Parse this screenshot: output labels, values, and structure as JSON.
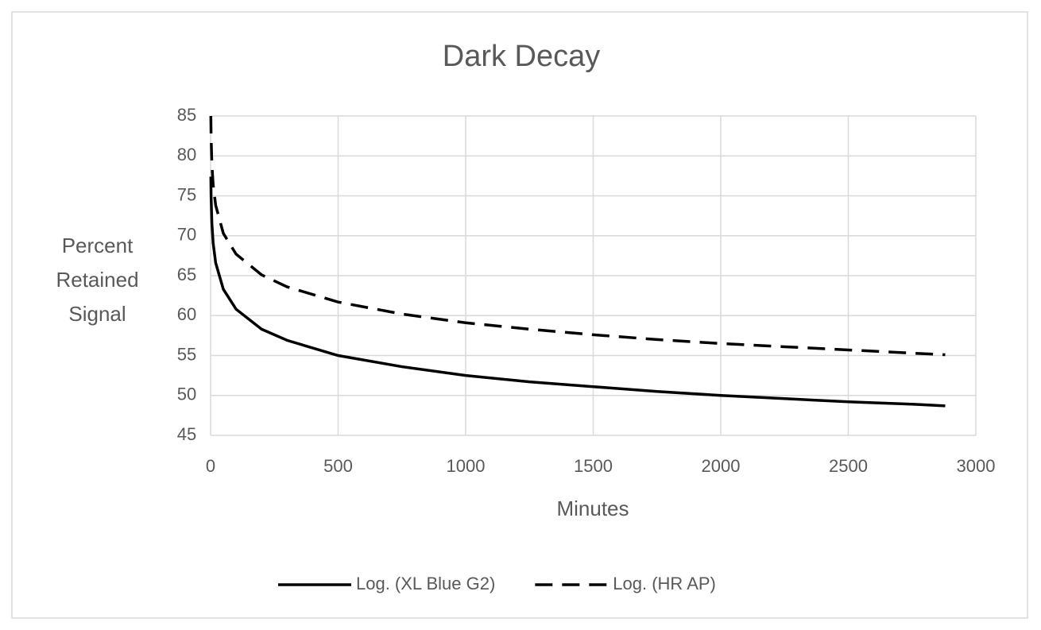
{
  "chart_data": {
    "type": "line",
    "title": "Dark Decay",
    "x_label": "Minutes",
    "y_label": "Percent Retained Signal",
    "x": [
      1,
      2,
      5,
      10,
      20,
      50,
      100,
      200,
      300,
      500,
      750,
      1000,
      1250,
      1500,
      1750,
      2000,
      2250,
      2500,
      2750,
      2880
    ],
    "series": [
      {
        "name": "Log. (XL Blue G2)",
        "color": "#000000",
        "dash": "solid",
        "values": [
          77.4,
          74.9,
          71.6,
          69.1,
          66.6,
          63.3,
          60.8,
          58.3,
          56.9,
          55.0,
          53.6,
          52.5,
          51.7,
          51.1,
          50.5,
          50.0,
          49.6,
          49.2,
          48.9,
          48.7
        ]
      },
      {
        "name": "Log. (HR AP)",
        "color": "#000000",
        "dash": "dashed",
        "values": [
          85.0,
          82.4,
          79.0,
          76.4,
          73.8,
          70.3,
          67.7,
          65.1,
          63.6,
          61.7,
          60.2,
          59.1,
          58.3,
          57.6,
          57.0,
          56.5,
          56.1,
          55.7,
          55.3,
          55.1
        ]
      }
    ],
    "xlim": [
      0,
      3000
    ],
    "xticks": [
      0,
      500,
      1000,
      1500,
      2000,
      2500,
      3000
    ],
    "ylim": [
      45,
      85
    ],
    "yticks": [
      45,
      50,
      55,
      60,
      65,
      70,
      75,
      80,
      85
    ],
    "grid": true,
    "legend": "bottom"
  }
}
